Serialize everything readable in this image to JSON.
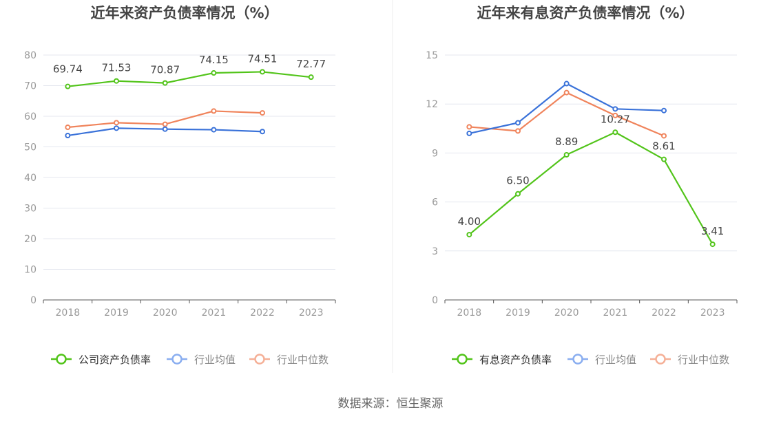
{
  "colors": {
    "green": "#52c41a",
    "blue": "#3a72d9",
    "orange": "#f0845c",
    "legend_blue": "#8aaef0",
    "legend_orange": "#f5b097",
    "grid": "#e4e7ef",
    "axis": "#555555",
    "tick_text": "#999999",
    "title_text": "#444444",
    "label_text": "#444444"
  },
  "source_text": "数据来源：恒生聚源",
  "chart_data": [
    {
      "type": "line",
      "title": "近年来资产负债率情况（%）",
      "xlabel": "",
      "ylabel": "",
      "x": [
        "2018",
        "2019",
        "2020",
        "2021",
        "2022",
        "2023"
      ],
      "ylim": [
        0,
        80
      ],
      "yticks": [
        0,
        10,
        20,
        30,
        40,
        50,
        60,
        70,
        80
      ],
      "grid": true,
      "legend_position": "bottom",
      "series": [
        {
          "name": "公司资产负债率",
          "color": "green",
          "legend_color": "green",
          "labels_shown": true,
          "values": [
            69.74,
            71.53,
            70.87,
            74.15,
            74.51,
            72.77
          ],
          "labels": [
            "69.74",
            "71.53",
            "70.87",
            "74.15",
            "74.51",
            "72.77"
          ]
        },
        {
          "name": "行业均值",
          "color": "blue",
          "legend_color": "legend_blue",
          "labels_shown": false,
          "values": [
            53.7,
            56.1,
            55.8,
            55.6,
            55.0,
            null
          ]
        },
        {
          "name": "行业中位数",
          "color": "orange",
          "legend_color": "legend_orange",
          "labels_shown": false,
          "values": [
            56.4,
            57.9,
            57.4,
            61.7,
            61.1,
            null
          ]
        }
      ]
    },
    {
      "type": "line",
      "title": "近年来有息资产负债率情况（%）",
      "xlabel": "",
      "ylabel": "",
      "x": [
        "2018",
        "2019",
        "2020",
        "2021",
        "2022",
        "2023"
      ],
      "ylim": [
        0,
        15
      ],
      "yticks": [
        0,
        3,
        6,
        9,
        12,
        15
      ],
      "grid": true,
      "legend_position": "bottom",
      "series": [
        {
          "name": "有息资产负债率",
          "color": "green",
          "legend_color": "green",
          "labels_shown": true,
          "values": [
            4.0,
            6.5,
            8.89,
            10.27,
            8.61,
            3.41
          ],
          "labels": [
            "4.00",
            "6.50",
            "8.89",
            "10.27",
            "8.61",
            "3.41"
          ]
        },
        {
          "name": "行业均值",
          "color": "blue",
          "legend_color": "legend_blue",
          "labels_shown": false,
          "values": [
            10.2,
            10.85,
            13.25,
            11.7,
            11.6,
            null
          ]
        },
        {
          "name": "行业中位数",
          "color": "orange",
          "legend_color": "legend_orange",
          "labels_shown": false,
          "values": [
            10.6,
            10.35,
            12.7,
            11.3,
            10.05,
            null
          ]
        }
      ]
    }
  ]
}
